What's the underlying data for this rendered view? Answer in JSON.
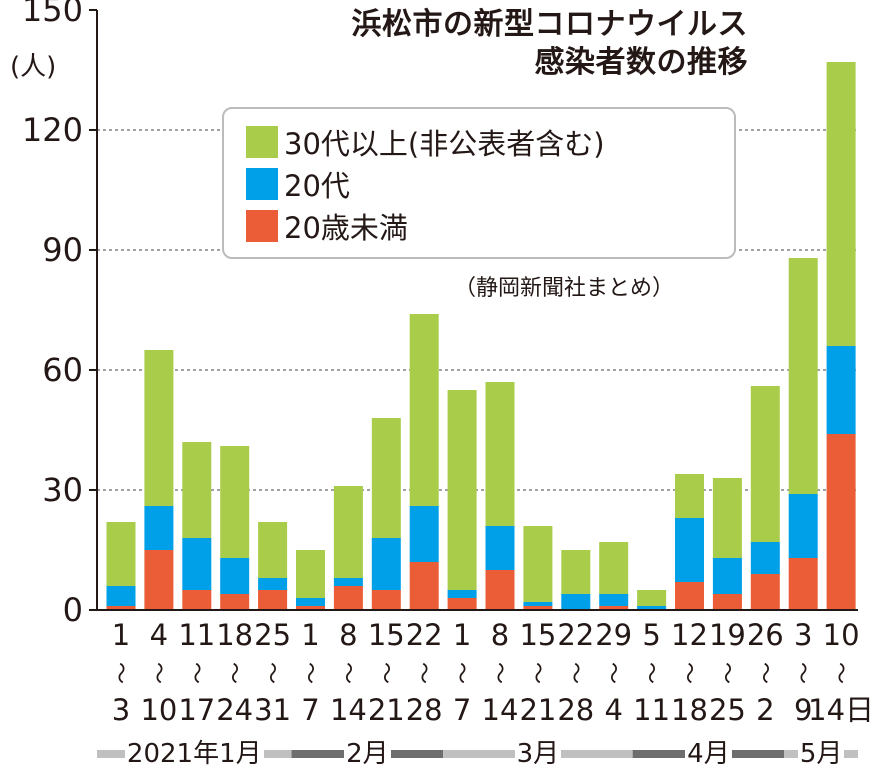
{
  "chart_data": {
    "type": "bar",
    "stacked": true,
    "title": [
      "浜松市の新型コロナウイルス",
      "感染者数の推移"
    ],
    "y_unit": "(人)",
    "ylim": [
      0,
      150
    ],
    "y_ticks": [
      0,
      30,
      60,
      90,
      120,
      150
    ],
    "grid": "dashed horizontal",
    "legend_position": "top-center",
    "source": "（静岡新聞社まとめ）",
    "categories": [
      {
        "from": "1",
        "to": "3"
      },
      {
        "from": "4",
        "to": "10"
      },
      {
        "from": "11",
        "to": "17"
      },
      {
        "from": "18",
        "to": "24"
      },
      {
        "from": "25",
        "to": "31"
      },
      {
        "from": "1",
        "to": "7"
      },
      {
        "from": "8",
        "to": "14"
      },
      {
        "from": "15",
        "to": "21"
      },
      {
        "from": "22",
        "to": "28"
      },
      {
        "from": "1",
        "to": "7"
      },
      {
        "from": "8",
        "to": "14"
      },
      {
        "from": "15",
        "to": "21"
      },
      {
        "from": "22",
        "to": "28"
      },
      {
        "from": "29",
        "to": "4"
      },
      {
        "from": "5",
        "to": "11"
      },
      {
        "from": "12",
        "to": "18"
      },
      {
        "from": "19",
        "to": "25"
      },
      {
        "from": "26",
        "to": "2"
      },
      {
        "from": "3",
        "to": "9"
      },
      {
        "from": "10",
        "to": "14日"
      }
    ],
    "range_mark": "〜",
    "series": [
      {
        "name": "20歳未満",
        "color": "#ea5d37",
        "values": [
          1,
          15,
          5,
          4,
          5,
          1,
          6,
          5,
          12,
          3,
          10,
          1,
          0,
          1,
          0,
          7,
          4,
          9,
          13,
          44
        ]
      },
      {
        "name": "20代",
        "color": "#00a0e9",
        "values": [
          5,
          11,
          13,
          9,
          3,
          2,
          2,
          13,
          14,
          2,
          11,
          1,
          4,
          3,
          1,
          16,
          9,
          8,
          16,
          22
        ]
      },
      {
        "name": "30代以上(非公表者含む)",
        "color": "#a9cc4a",
        "values": [
          16,
          39,
          24,
          28,
          14,
          12,
          23,
          30,
          48,
          50,
          36,
          19,
          11,
          13,
          4,
          11,
          20,
          39,
          59,
          71
        ]
      }
    ],
    "legend_order": [
      2,
      1,
      0
    ],
    "months": [
      {
        "label": "2021年1月",
        "start": 0,
        "end": 4
      },
      {
        "label": "2月",
        "start": 5,
        "end": 8
      },
      {
        "label": "3月",
        "start": 9,
        "end": 13
      },
      {
        "label": "4月",
        "start": 14,
        "end": 17
      },
      {
        "label": "5月",
        "start": 18,
        "end": 19
      }
    ],
    "month_band_colors": [
      "#c0c0c0",
      "#6e6e6e"
    ]
  }
}
